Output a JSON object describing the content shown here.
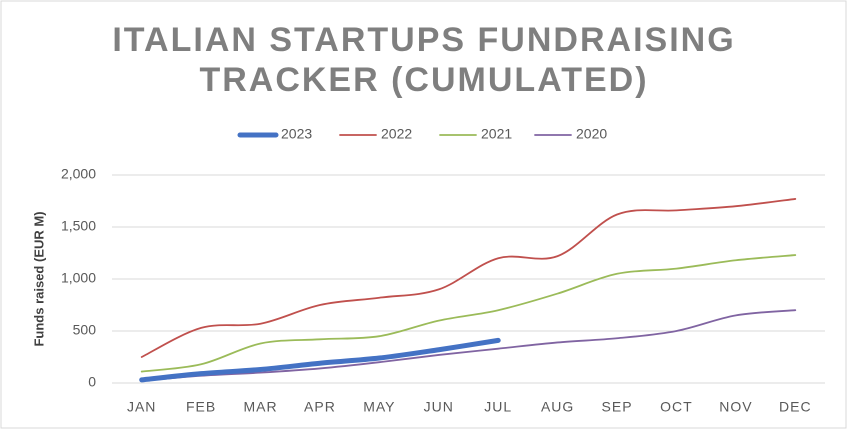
{
  "chart_data": {
    "type": "line",
    "title": [
      "ITALIAN STARTUPS FUNDRAISING",
      "TRACKER (CUMULATED)"
    ],
    "y_label": "Funds raised (EUR M)",
    "categories": [
      "JAN",
      "FEB",
      "MAR",
      "APR",
      "MAY",
      "JUN",
      "JUL",
      "AUG",
      "SEP",
      "OCT",
      "NOV",
      "DEC"
    ],
    "series": [
      {
        "name": "2023",
        "color": "#4472c4",
        "width": 5,
        "values": [
          30,
          90,
          130,
          190,
          240,
          320,
          410,
          null,
          null,
          null,
          null,
          null
        ]
      },
      {
        "name": "2022",
        "color": "#c0504d",
        "width": 1.8,
        "values": [
          250,
          530,
          570,
          750,
          820,
          900,
          1200,
          1220,
          1620,
          1660,
          1700,
          1770
        ]
      },
      {
        "name": "2021",
        "color": "#9bbb59",
        "width": 1.8,
        "values": [
          110,
          180,
          380,
          420,
          450,
          600,
          700,
          860,
          1050,
          1100,
          1180,
          1230
        ]
      },
      {
        "name": "2020",
        "color": "#8064a2",
        "width": 1.8,
        "values": [
          20,
          70,
          100,
          140,
          200,
          270,
          330,
          390,
          430,
          500,
          650,
          700
        ]
      }
    ],
    "ylim": [
      0,
      2000
    ],
    "yticks": [
      0,
      500,
      {
        "value": 1000,
        "label": "1,000"
      },
      {
        "value": 1500,
        "label": "1,500"
      },
      {
        "value": 2000,
        "label": "2,000"
      }
    ],
    "grid": true,
    "legend": "top"
  }
}
